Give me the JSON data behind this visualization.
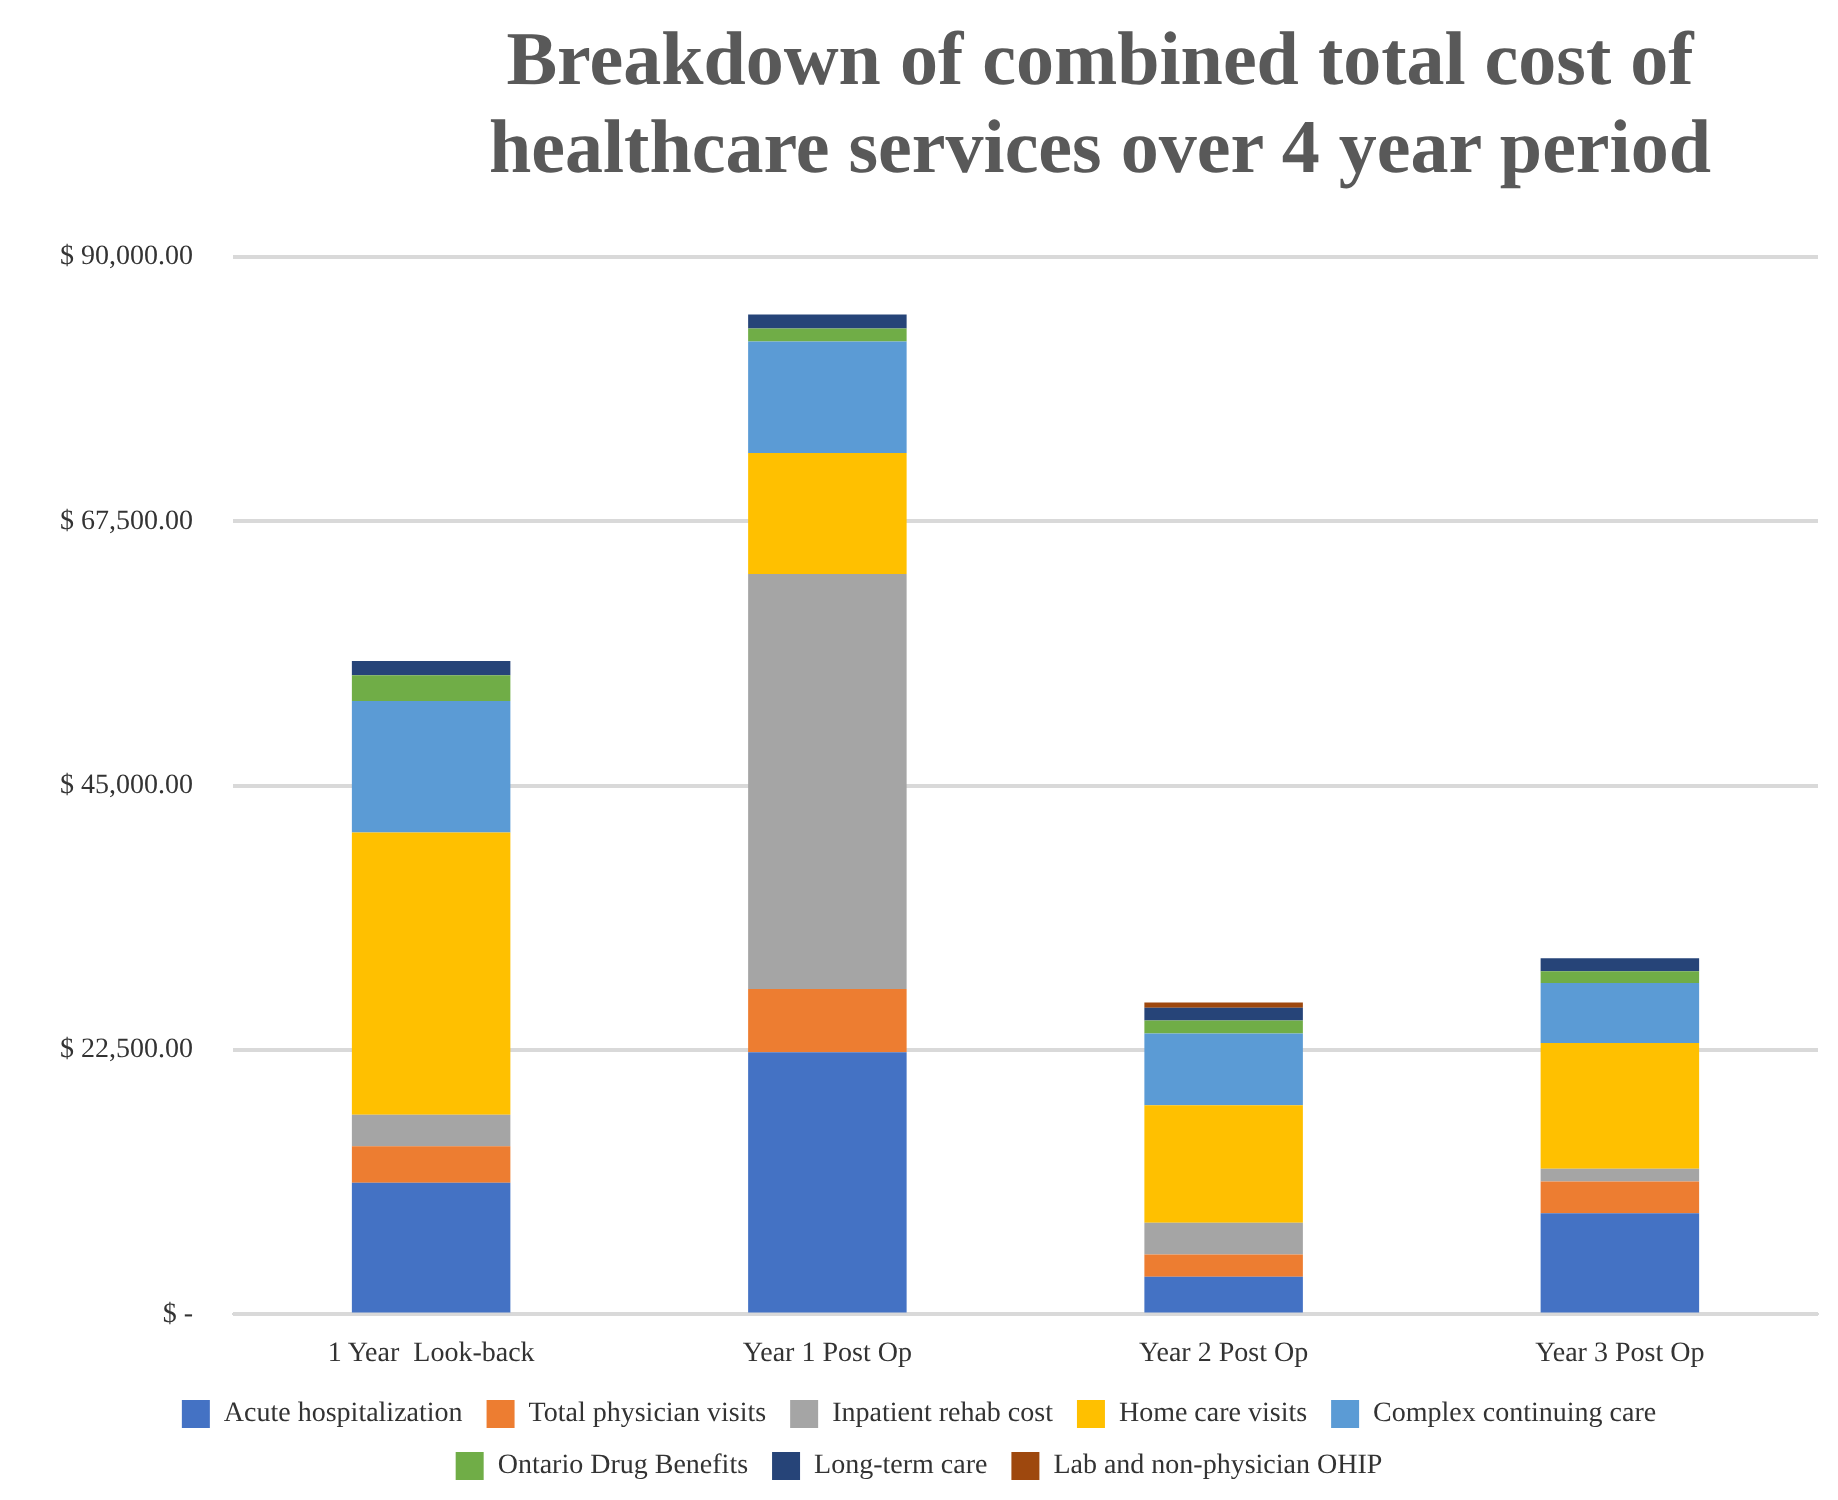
{
  "chart_data": {
    "type": "bar",
    "title": "Breakdown of combined total cost of healthcare services over 4 year period",
    "categories": [
      "1 Year  Look-back",
      "Year 1 Post Op",
      "Year 2 Post Op",
      "Year 3 Post Op"
    ],
    "stacked": true,
    "series": [
      {
        "name": "Acute hospitalization",
        "color": "#4472c4",
        "values": [
          11200,
          22300,
          3200,
          8600
        ]
      },
      {
        "name": "Total physician visits",
        "color": "#ed7d31",
        "values": [
          3100,
          5400,
          1900,
          2700
        ]
      },
      {
        "name": "Inpatient rehab cost",
        "color": "#a5a5a5",
        "values": [
          2700,
          35300,
          2700,
          1100
        ]
      },
      {
        "name": "Home care visits",
        "color": "#ffc000",
        "values": [
          24000,
          10300,
          10000,
          10700
        ]
      },
      {
        "name": "Complex continuing care",
        "color": "#5b9bd5",
        "values": [
          11200,
          9500,
          6100,
          5100
        ]
      },
      {
        "name": "Ontario Drug Benefits",
        "color": "#70ad47",
        "values": [
          2200,
          1100,
          1100,
          1000
        ]
      },
      {
        "name": "Long-term care",
        "color": "#264478",
        "values": [
          1200,
          1200,
          1100,
          1100
        ]
      },
      {
        "name": "Lab and non-physician OHIP",
        "color": "#9e480e",
        "values": [
          0,
          0,
          450,
          0
        ]
      }
    ],
    "ylim": [
      0,
      90000
    ],
    "yticks": [
      {
        "value": 0,
        "label": "$ -"
      },
      {
        "value": 22500,
        "label": "$ 22,500.00"
      },
      {
        "value": 45000,
        "label": "$ 45,000.00"
      },
      {
        "value": 67500,
        "label": "$ 67,500.00"
      },
      {
        "value": 90000,
        "label": "$ 90,000.00"
      }
    ],
    "grid": "y",
    "legend": "bottom"
  }
}
